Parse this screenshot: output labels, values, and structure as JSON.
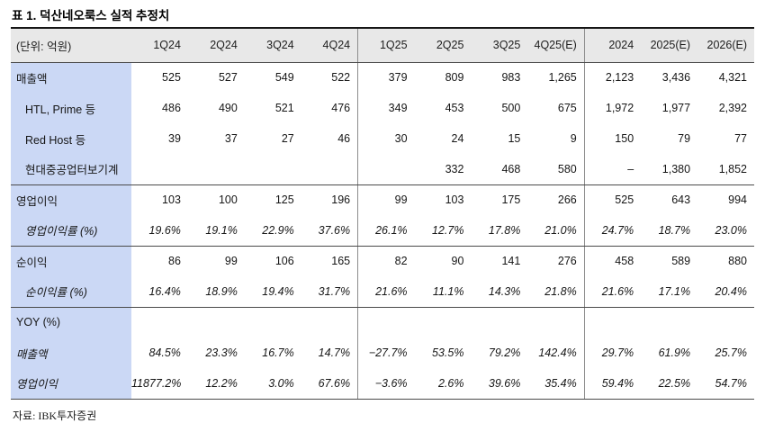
{
  "title": "표 1. 덕산네오룩스 실적 추정치",
  "source": "자료: IBK투자증권",
  "colors": {
    "header_bg": "#e8e8e8",
    "label_bg": "#cbd8f5",
    "section_line": "#4a4a4a",
    "divider_line": "#8c8c8c",
    "title_line": "#161616"
  },
  "table": {
    "unit_label": "(단위: 억원)",
    "columns": [
      "1Q24",
      "2Q24",
      "3Q24",
      "4Q24",
      "1Q25",
      "2Q25",
      "3Q25",
      "4Q25(E)",
      "2024",
      "2025(E)",
      "2026(E)"
    ],
    "divider_before_columns": [
      4,
      8
    ],
    "rows": [
      {
        "label": "매출액",
        "indent": false,
        "italic": false,
        "section_end": false,
        "values": [
          "525",
          "527",
          "549",
          "522",
          "379",
          "809",
          "983",
          "1,265",
          "2,123",
          "3,436",
          "4,321"
        ]
      },
      {
        "label": "HTL, Prime 등",
        "indent": true,
        "italic": false,
        "section_end": false,
        "values": [
          "486",
          "490",
          "521",
          "476",
          "349",
          "453",
          "500",
          "675",
          "1,972",
          "1,977",
          "2,392"
        ]
      },
      {
        "label": "Red Host 등",
        "indent": true,
        "italic": false,
        "section_end": false,
        "values": [
          "39",
          "37",
          "27",
          "46",
          "30",
          "24",
          "15",
          "9",
          "150",
          "79",
          "77"
        ]
      },
      {
        "label": "현대중공업터보기계",
        "indent": true,
        "italic": false,
        "section_end": true,
        "values": [
          "",
          "",
          "",
          "",
          "",
          "332",
          "468",
          "580",
          "–",
          "1,380",
          "1,852"
        ]
      },
      {
        "label": "영업이익",
        "indent": false,
        "italic": false,
        "section_end": false,
        "values": [
          "103",
          "100",
          "125",
          "196",
          "99",
          "103",
          "175",
          "266",
          "525",
          "643",
          "994"
        ]
      },
      {
        "label": "영업이익률 (%)",
        "indent": true,
        "italic": true,
        "section_end": true,
        "values": [
          "19.6%",
          "19.1%",
          "22.9%",
          "37.6%",
          "26.1%",
          "12.7%",
          "17.8%",
          "21.0%",
          "24.7%",
          "18.7%",
          "23.0%"
        ]
      },
      {
        "label": "순이익",
        "indent": false,
        "italic": false,
        "section_end": false,
        "values": [
          "86",
          "99",
          "106",
          "165",
          "82",
          "90",
          "141",
          "276",
          "458",
          "589",
          "880"
        ]
      },
      {
        "label": "순이익률 (%)",
        "indent": true,
        "italic": true,
        "section_end": true,
        "values": [
          "16.4%",
          "18.9%",
          "19.4%",
          "31.7%",
          "21.6%",
          "11.1%",
          "14.3%",
          "21.8%",
          "21.6%",
          "17.1%",
          "20.4%"
        ]
      },
      {
        "label": "YOY (%)",
        "indent": false,
        "italic": false,
        "section_end": false,
        "values": [
          "",
          "",
          "",
          "",
          "",
          "",
          "",
          "",
          "",
          "",
          ""
        ]
      },
      {
        "label": "매출액",
        "indent": false,
        "italic": true,
        "section_end": false,
        "values": [
          "84.5%",
          "23.3%",
          "16.7%",
          "14.7%",
          "−27.7%",
          "53.5%",
          "79.2%",
          "142.4%",
          "29.7%",
          "61.9%",
          "25.7%"
        ]
      },
      {
        "label": "영업이익",
        "indent": false,
        "italic": true,
        "section_end": true,
        "values": [
          "11877.2%",
          "12.2%",
          "3.0%",
          "67.6%",
          "−3.6%",
          "2.6%",
          "39.6%",
          "35.4%",
          "59.4%",
          "22.5%",
          "54.7%"
        ]
      }
    ]
  }
}
